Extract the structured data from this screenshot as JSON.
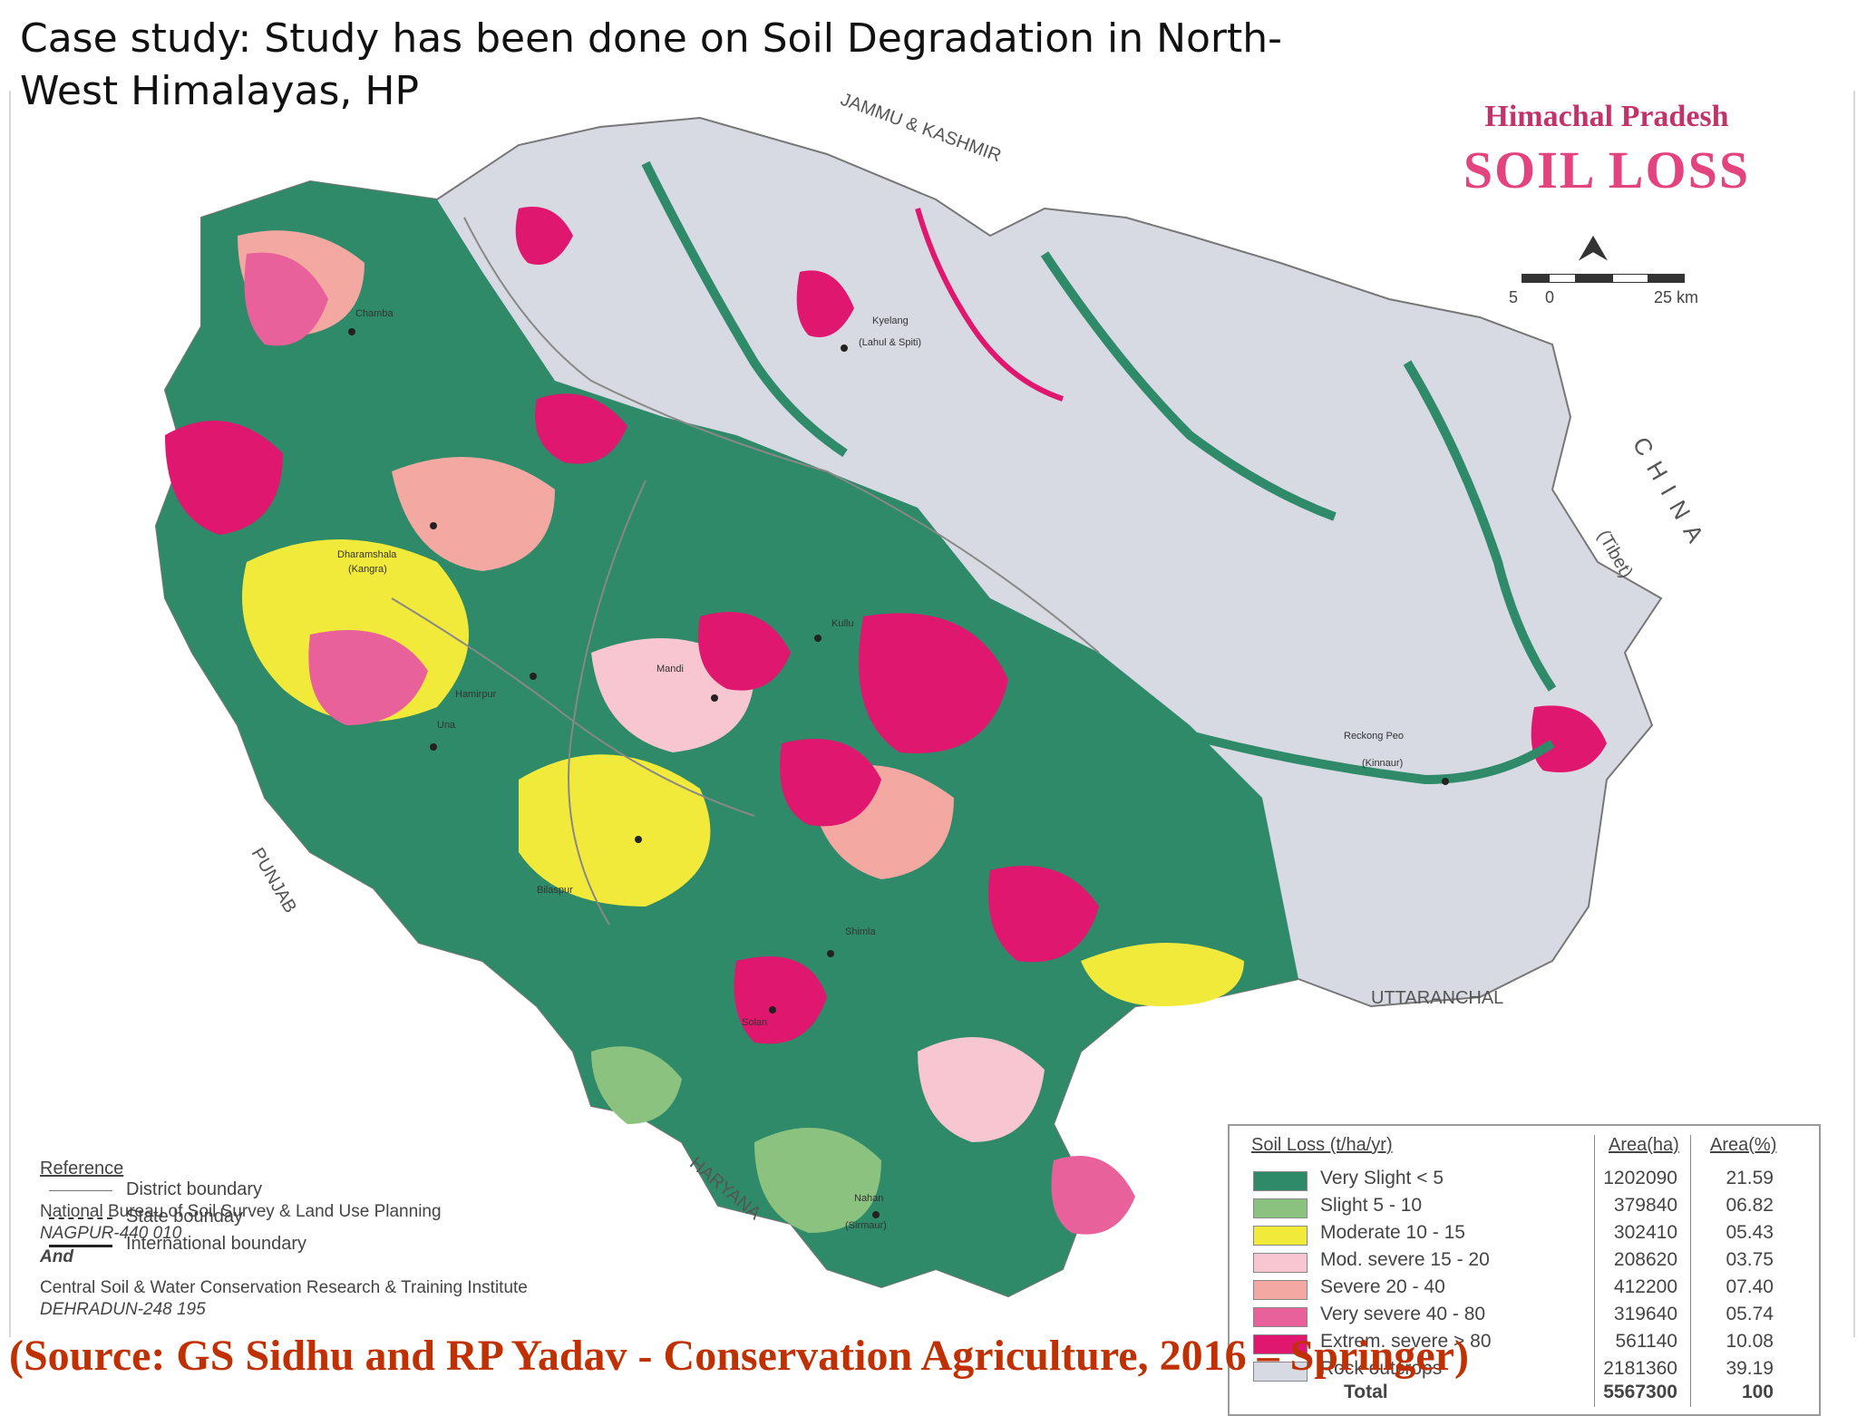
{
  "slide": {
    "title": "Case study: Study has been done on Soil Degradation in North-West Himalayas, HP",
    "source": "(Source: GS Sidhu and RP Yadav - Conservation Agriculture, 2016 – Springer)"
  },
  "map": {
    "region_title": "Himachal Pradesh",
    "subtitle": "SOIL LOSS",
    "north_arrow_icon": "north-arrow-icon",
    "scale": {
      "left": "5",
      "zero": "0",
      "right": "25 km"
    },
    "neighbours": {
      "north": "JAMMU & KASHMIR",
      "east": "CHINA",
      "east_note": "(Tibet)",
      "south_east": "UTTARANCHAL",
      "south_west": "PUNJAB",
      "south": "HARYANA"
    },
    "towns": [
      "Chamba",
      "Kyelang",
      "(Lahul & Spiti)",
      "Dharamshala",
      "(Kangra)",
      "Kullu",
      "Mandi",
      "Hamirpur",
      "Una",
      "Bilaspur",
      "Reckong Peo",
      "(Kinnaur)",
      "Shimla",
      "Solan",
      "Nahan",
      "(Sirmaur)"
    ],
    "reference": {
      "heading": "Reference",
      "items": [
        "District boundary",
        "State bounday",
        "International boundary"
      ]
    },
    "agencies": {
      "nbss": "National Bureau of Soil Survey & Land Use Planning",
      "nbss_city": "NAGPUR-440 010",
      "and": "And",
      "cswcrti": "Central Soil & Water Conservation Research & Training Institute",
      "cswcrti_city": "DEHRADUN-248 195"
    },
    "legend": {
      "heading": "Soil Loss (t/ha/yr)",
      "col_area_ha": "Area(ha)",
      "col_area_pct": "Area(%)",
      "rows": [
        {
          "label": "Very Slight < 5",
          "area_ha": "1202090",
          "area_pct": "21.59",
          "color": "#2e8a68"
        },
        {
          "label": "Slight 5 - 10",
          "area_ha": "379840",
          "area_pct": "06.82",
          "color": "#8cc27f"
        },
        {
          "label": "Moderate 10 - 15",
          "area_ha": "302410",
          "area_pct": "05.43",
          "color": "#f2ea3a"
        },
        {
          "label": "Mod. severe 15 - 20",
          "area_ha": "208620",
          "area_pct": "03.75",
          "color": "#f7c6d0"
        },
        {
          "label": "Severe 20 - 40",
          "area_ha": "412200",
          "area_pct": "07.40",
          "color": "#f4a8a2"
        },
        {
          "label": "Very severe 40 - 80",
          "area_ha": "319640",
          "area_pct": "05.74",
          "color": "#e8619a"
        },
        {
          "label": "Extrem. severe > 80",
          "area_ha": "561140",
          "area_pct": "10.08",
          "color": "#e0176e"
        },
        {
          "label": "Rock outcrops",
          "area_ha": "2181360",
          "area_pct": "39.19",
          "color": "#d7d9e3"
        }
      ],
      "total_label": "Total",
      "total_ha": "5567300",
      "total_pct": "100"
    }
  }
}
